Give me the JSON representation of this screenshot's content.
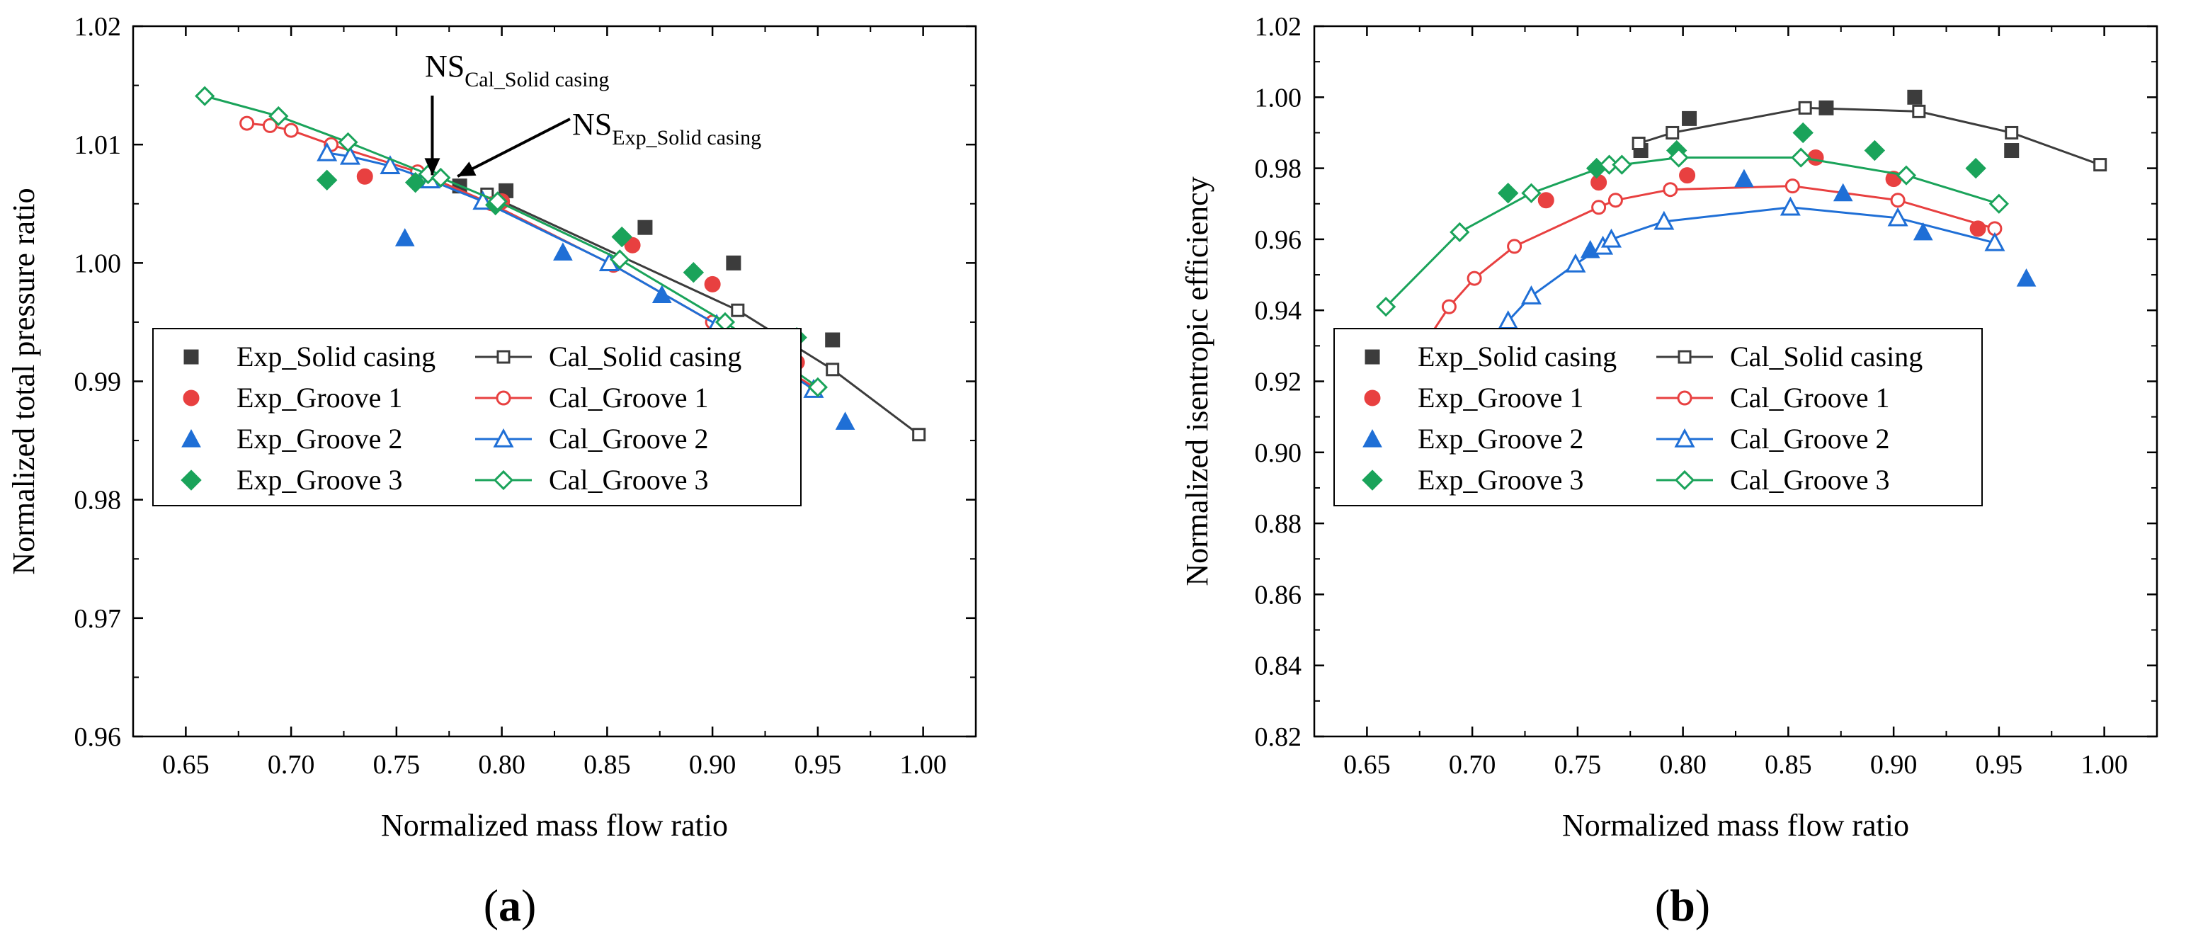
{
  "chart_data": [
    {
      "panel": "a",
      "type": "scatter",
      "xlabel": "Normalized mass flow ratio",
      "ylabel": "Normalized total pressure ratio",
      "xlim": [
        0.625,
        1.025
      ],
      "ylim": [
        0.96,
        1.02
      ],
      "xticks": [
        "0.65",
        "0.70",
        "0.75",
        "0.80",
        "0.85",
        "0.90",
        "0.95",
        "1.00"
      ],
      "yticks": [
        "0.96",
        "0.97",
        "0.98",
        "0.99",
        "1.00",
        "1.01",
        "1.02"
      ],
      "legend_position": "bottom-left",
      "annotations": [
        {
          "main": "NS",
          "sub": "Cal_Solid casing",
          "x": 0.767,
          "y": 1.0067
        },
        {
          "main": "NS",
          "sub": "Exp_Solid casing",
          "x": 0.779,
          "y": 1.0066
        }
      ],
      "series": [
        {
          "name": "Exp_Solid casing",
          "kind": "exp",
          "marker": "square-filled",
          "color": "#3c3c3c",
          "x": [
            0.78,
            0.802,
            0.868,
            0.91,
            0.957
          ],
          "y": [
            1.0065,
            1.0061,
            1.003,
            1.0,
            0.9935
          ]
        },
        {
          "name": "Cal_Solid casing",
          "kind": "cal",
          "marker": "square-open",
          "color": "#3c3c3c",
          "x": [
            0.793,
            0.912,
            0.957,
            0.998
          ],
          "y": [
            1.0058,
            0.996,
            0.991,
            0.9855
          ]
        },
        {
          "name": "Exp_Groove 1",
          "kind": "exp",
          "marker": "circle-filled",
          "color": "#e84040",
          "x": [
            0.735,
            0.8,
            0.862,
            0.9,
            0.94
          ],
          "y": [
            1.0073,
            1.0052,
            1.0015,
            0.9982,
            0.9916
          ]
        },
        {
          "name": "Cal_Groove 1",
          "kind": "cal",
          "marker": "circle-open",
          "color": "#e84040",
          "x": [
            0.679,
            0.69,
            0.7,
            0.719,
            0.76,
            0.795,
            0.853,
            0.9,
            0.949
          ],
          "y": [
            1.0118,
            1.0116,
            1.0112,
            1.01,
            1.0077,
            1.005,
            0.9998,
            0.995,
            0.9894
          ]
        },
        {
          "name": "Exp_Groove 2",
          "kind": "exp",
          "marker": "triangle-filled",
          "color": "#1f6fd6",
          "x": [
            0.754,
            0.829,
            0.876,
            0.914,
            0.963
          ],
          "y": [
            1.0021,
            1.0009,
            0.9973,
            0.993,
            0.9866
          ]
        },
        {
          "name": "Cal_Groove 2",
          "kind": "cal",
          "marker": "triangle-open",
          "color": "#1f6fd6",
          "x": [
            0.717,
            0.728,
            0.747,
            0.766,
            0.791,
            0.851,
            0.902,
            0.948
          ],
          "y": [
            1.0093,
            1.009,
            1.0082,
            1.007,
            1.0052,
            1.0,
            0.9948,
            0.9893
          ]
        },
        {
          "name": "Exp_Groove 3",
          "kind": "exp",
          "marker": "diamond-filled",
          "color": "#1aa35a",
          "x": [
            0.717,
            0.759,
            0.797,
            0.857,
            0.891,
            0.94
          ],
          "y": [
            1.007,
            1.0068,
            1.0049,
            1.0022,
            0.9992,
            0.9937
          ]
        },
        {
          "name": "Cal_Groove 3",
          "kind": "cal",
          "marker": "diamond-open",
          "color": "#1aa35a",
          "x": [
            0.659,
            0.694,
            0.727,
            0.765,
            0.771,
            0.798,
            0.856,
            0.906,
            0.95
          ],
          "y": [
            1.0141,
            1.0124,
            1.0102,
            1.0075,
            1.0072,
            1.0052,
            1.0003,
            0.995,
            0.9895
          ]
        }
      ]
    },
    {
      "panel": "b",
      "type": "scatter",
      "xlabel": "Normalized mass flow ratio",
      "ylabel": "Normalized isentropic efficiency",
      "xlim": [
        0.625,
        1.025
      ],
      "ylim": [
        0.82,
        1.02
      ],
      "xticks": [
        "0.65",
        "0.70",
        "0.75",
        "0.80",
        "0.85",
        "0.90",
        "0.95",
        "1.00"
      ],
      "yticks": [
        "0.82",
        "0.84",
        "0.86",
        "0.88",
        "0.90",
        "0.92",
        "0.94",
        "0.96",
        "0.98",
        "1.00",
        "1.02"
      ],
      "legend_position": "bottom-left",
      "series": [
        {
          "name": "Exp_Solid casing",
          "kind": "exp",
          "marker": "square-filled",
          "color": "#3c3c3c",
          "x": [
            0.78,
            0.803,
            0.868,
            0.91,
            0.956
          ],
          "y": [
            0.985,
            0.994,
            0.997,
            1.0,
            0.985
          ]
        },
        {
          "name": "Cal_Solid casing",
          "kind": "cal",
          "marker": "square-open",
          "color": "#3c3c3c",
          "x": [
            0.779,
            0.795,
            0.858,
            0.912,
            0.956,
            0.998
          ],
          "y": [
            0.987,
            0.99,
            0.997,
            0.996,
            0.99,
            0.981
          ]
        },
        {
          "name": "Exp_Groove 1",
          "kind": "exp",
          "marker": "circle-filled",
          "color": "#e84040",
          "x": [
            0.735,
            0.76,
            0.802,
            0.863,
            0.9,
            0.94
          ],
          "y": [
            0.971,
            0.976,
            0.978,
            0.983,
            0.977,
            0.963
          ]
        },
        {
          "name": "Cal_Groove 1",
          "kind": "cal",
          "marker": "circle-open",
          "color": "#e84040",
          "x": [
            0.679,
            0.689,
            0.701,
            0.72,
            0.76,
            0.768,
            0.794,
            0.852,
            0.902,
            0.948
          ],
          "y": [
            0.932,
            0.941,
            0.949,
            0.958,
            0.969,
            0.971,
            0.974,
            0.975,
            0.971,
            0.963
          ]
        },
        {
          "name": "Exp_Groove 2",
          "kind": "exp",
          "marker": "triangle-filled",
          "color": "#1f6fd6",
          "x": [
            0.756,
            0.829,
            0.876,
            0.914,
            0.963
          ],
          "y": [
            0.957,
            0.977,
            0.973,
            0.962,
            0.949
          ]
        },
        {
          "name": "Cal_Groove 2",
          "kind": "cal",
          "marker": "triangle-open",
          "color": "#1f6fd6",
          "x": [
            0.717,
            0.728,
            0.749,
            0.762,
            0.766,
            0.791,
            0.851,
            0.902,
            0.948
          ],
          "y": [
            0.937,
            0.944,
            0.953,
            0.958,
            0.96,
            0.965,
            0.969,
            0.966,
            0.959
          ]
        },
        {
          "name": "Exp_Groove 3",
          "kind": "exp",
          "marker": "diamond-filled",
          "color": "#1aa35a",
          "x": [
            0.717,
            0.759,
            0.797,
            0.857,
            0.891,
            0.939
          ],
          "y": [
            0.973,
            0.98,
            0.985,
            0.99,
            0.985,
            0.98
          ]
        },
        {
          "name": "Cal_Groove 3",
          "kind": "cal",
          "marker": "diamond-open",
          "color": "#1aa35a",
          "x": [
            0.659,
            0.694,
            0.728,
            0.765,
            0.771,
            0.798,
            0.856,
            0.906,
            0.95
          ],
          "y": [
            0.941,
            0.962,
            0.973,
            0.981,
            0.981,
            0.983,
            0.983,
            0.978,
            0.97
          ]
        }
      ]
    }
  ],
  "captions": {
    "a": {
      "open": "(",
      "letter": "a",
      "close": ")"
    },
    "b": {
      "open": "(",
      "letter": "b",
      "close": ")"
    }
  }
}
